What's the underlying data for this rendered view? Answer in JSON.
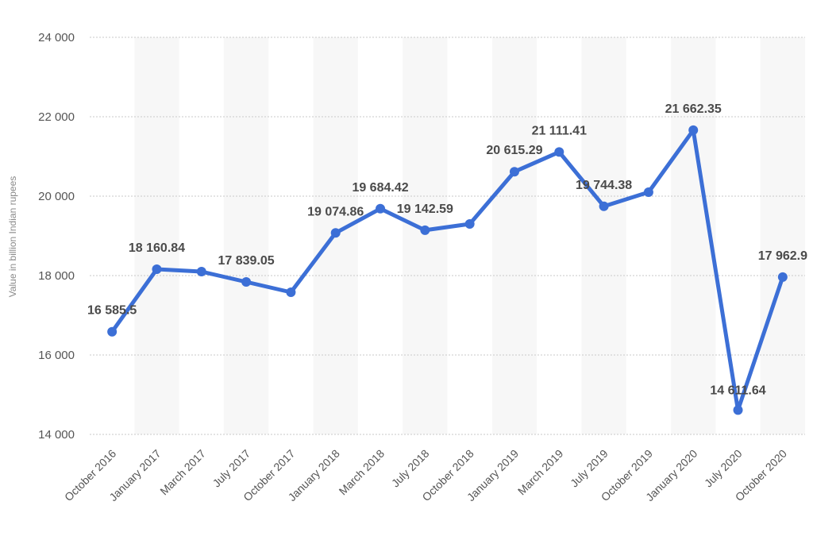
{
  "chart_data": {
    "type": "line",
    "ylabel": "Value in billion Indian rupees",
    "ylim": [
      14000,
      24000
    ],
    "yticks": [
      14000,
      16000,
      18000,
      20000,
      22000,
      24000
    ],
    "ytick_labels": [
      "14 000",
      "16 000",
      "18 000",
      "20 000",
      "22 000",
      "24 000"
    ],
    "grid": "horizontal dotted",
    "categories": [
      "October 2016",
      "January 2017",
      "March 2017",
      "July 2017",
      "October 2017",
      "January 2018",
      "March 2018",
      "July 2018",
      "October 2018",
      "January 2019",
      "March 2019",
      "July 2019",
      "October 2019",
      "January 2020",
      "July 2020",
      "October 2020"
    ],
    "values": [
      16585.5,
      18160.84,
      18100,
      17839.05,
      17580,
      19074.86,
      19684.42,
      19142.59,
      19300,
      20615.29,
      21111.41,
      19744.38,
      20100,
      21662.35,
      14611.64,
      17962.9
    ],
    "data_labels": [
      "16 585.5",
      "18 160.84",
      "",
      "17 839.05",
      "",
      "19 074.86",
      "19 684.42",
      "19 142.59",
      "",
      "20 615.29",
      "21 111.41",
      "19 744.38",
      "",
      "21 662.35",
      "14 611.64",
      "17 962.9"
    ],
    "line_color": "#3c6fd6",
    "band_color": "#f7f7f7",
    "grid_color": "#c9c9c9"
  }
}
